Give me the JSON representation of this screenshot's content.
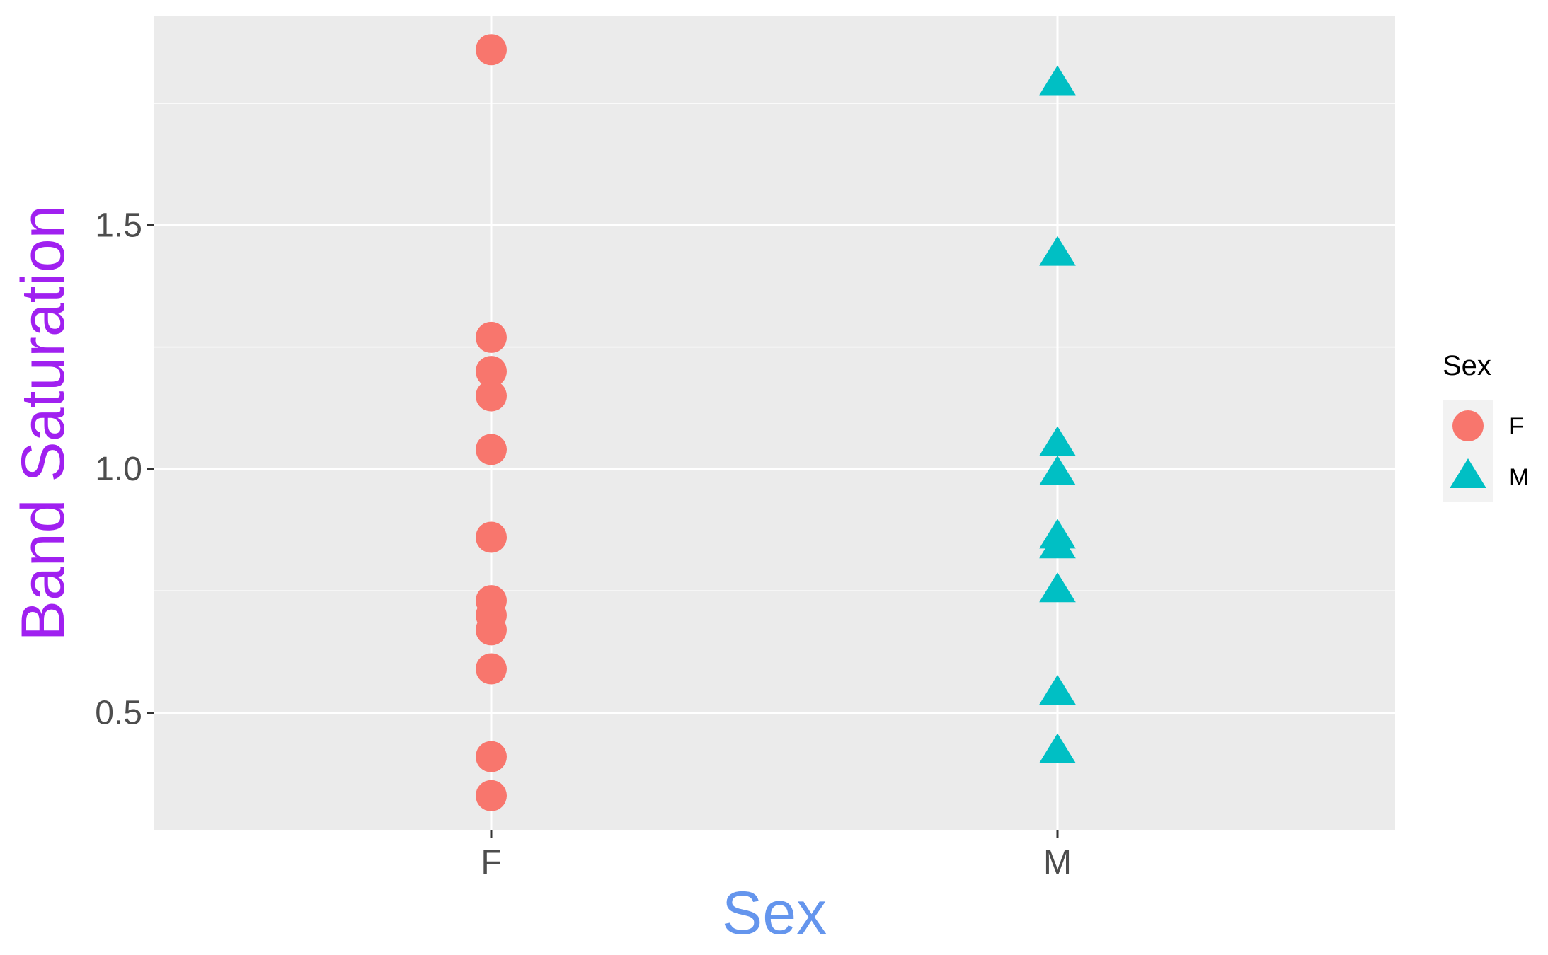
{
  "chart_data": {
    "type": "scatter",
    "categories": [
      "F",
      "M"
    ],
    "xlabel": "Sex",
    "ylabel": "Band Saturation",
    "ylim": [
      0.26,
      1.93
    ],
    "yticks": [
      0.5,
      1.0,
      1.5
    ],
    "ytick_labels": [
      "0.5",
      "1.0",
      "1.5"
    ],
    "grid": true,
    "legend_placement": "right",
    "legend_title": "Sex",
    "series": [
      {
        "name": "F",
        "category": "F",
        "shape": "circle",
        "color": "#F8766D",
        "values": [
          1.86,
          1.27,
          1.2,
          1.15,
          1.04,
          0.86,
          0.73,
          0.7,
          0.67,
          0.59,
          0.41,
          0.33
        ]
      },
      {
        "name": "M",
        "category": "M",
        "shape": "triangle",
        "color": "#00BFC4",
        "values": [
          1.79,
          1.44,
          1.05,
          0.99,
          0.86,
          0.84,
          0.75,
          0.54,
          0.42
        ]
      }
    ]
  },
  "colors": {
    "panel_background": "#EBEBEB",
    "grid": "#FFFFFF",
    "xlabel": "#6495ED",
    "ylabel": "#A020F0",
    "legend_key_background": "#F2F2F2"
  }
}
